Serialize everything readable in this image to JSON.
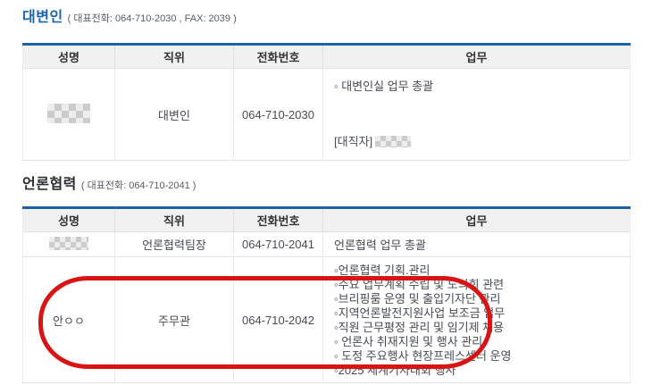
{
  "colors": {
    "title_blue": "#1b64b4",
    "title_dark": "#2b2f33",
    "table_top_border_blue": "#1d62a6",
    "header_bg": "#f1f1f1",
    "annotation_red": "#d91414"
  },
  "sections": [
    {
      "title": "대변인",
      "caption": "( 대표전화: 064-710-2030 , FAX: 2039 )",
      "table": {
        "headers": [
          "성명",
          "직위",
          "전화번호",
          "업무"
        ],
        "rows": [
          {
            "name_redacted": true,
            "position": "대변인",
            "phone": "064-710-2030",
            "duty_main": "◦ 대변인실 업무 총괄",
            "deputy_label": "[대직자]",
            "deputy_redacted": true
          }
        ]
      }
    },
    {
      "title": "언론협력",
      "caption": "( 대표전화: 064-710-2041 )",
      "table": {
        "headers": [
          "성명",
          "직위",
          "전화번호",
          "업무"
        ],
        "rows": [
          {
            "name_redacted": true,
            "position": "언론협력팀장",
            "phone": "064-710-2041",
            "duty_main": "언론협력 업무 총괄"
          },
          {
            "name": "안ㅇㅇ",
            "position": "주무관",
            "phone": "064-710-2042",
            "annotated": true,
            "duties": [
              "◦언론협력 기획.관리",
              "◦주요 업무계획 수립 및 도의회 관련",
              "◦브리핑룸 운영 및 출입기자단 관리",
              "◦지역언론발전지원사업 보조금 업무",
              "◦직원 근무평정 관리 및 임기제 채용",
              "◦ 언론사 취재지원 및 행사 관리",
              "◦ 도정 주요행사 현장프레스센터 운영",
              "◦2025 세계기자대회 행사"
            ]
          }
        ]
      }
    }
  ]
}
